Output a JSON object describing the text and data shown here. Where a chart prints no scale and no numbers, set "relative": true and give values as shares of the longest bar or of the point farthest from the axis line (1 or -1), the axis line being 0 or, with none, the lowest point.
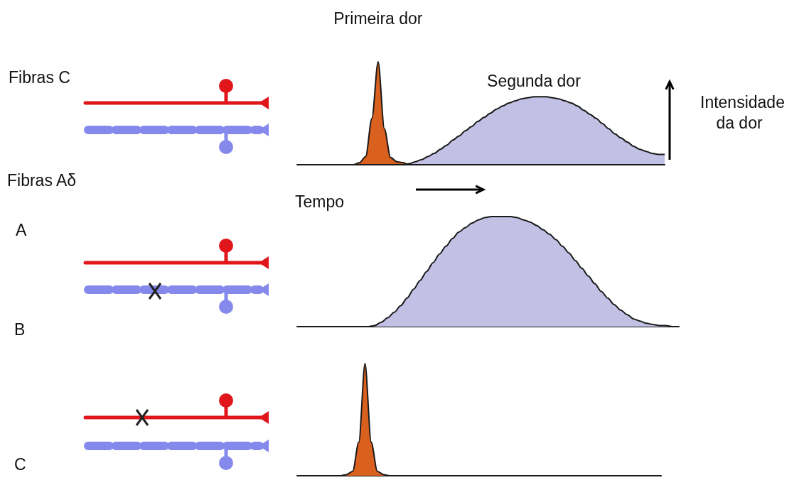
{
  "chart_data": [
    {
      "type": "area",
      "relative": true,
      "xlabel": "Tempo",
      "ylabel": "Intensidade da dor",
      "legend": false,
      "annotations": [
        "Fibras C",
        "Fibras Aδ",
        "A"
      ],
      "categories": [
        null,
        null,
        null,
        null,
        null,
        null,
        null,
        null,
        null,
        null,
        null,
        null,
        null,
        null,
        null,
        null,
        null,
        null,
        null,
        null,
        null,
        null,
        null,
        null,
        null,
        null,
        null,
        null,
        null,
        null,
        null,
        null,
        null,
        null,
        null,
        null,
        null,
        null,
        null,
        null,
        null,
        null,
        null,
        null,
        null,
        null,
        null,
        null,
        null,
        null,
        null,
        null,
        null,
        null,
        null,
        null,
        null,
        null,
        null,
        null
      ],
      "series": [
        {
          "name": "Primeira dor",
          "color": "#d9601e",
          "values": [
            0,
            0,
            0,
            0,
            0,
            0,
            0,
            0,
            0,
            0,
            0.02,
            0.08,
            0.45,
            1,
            0.35,
            0.07,
            0.03,
            0.02,
            0,
            0,
            0,
            0,
            0,
            0,
            0,
            0,
            0,
            0,
            0,
            0,
            0,
            0,
            0,
            0,
            0,
            0,
            0,
            0,
            0,
            0,
            0,
            0,
            0,
            0,
            0,
            0,
            0,
            0,
            0,
            0,
            0,
            0,
            0,
            0,
            0,
            0,
            0,
            0,
            0,
            0
          ]
        },
        {
          "name": "Segunda dor",
          "color": "#c2c0e4",
          "values": [
            0,
            0,
            0,
            0,
            0,
            0,
            0,
            0,
            0,
            0,
            0,
            0,
            0,
            0,
            0,
            0,
            0,
            0,
            0.01,
            0.03,
            0.05,
            0.08,
            0.11,
            0.15,
            0.19,
            0.24,
            0.28,
            0.33,
            0.37,
            0.42,
            0.46,
            0.5,
            0.54,
            0.57,
            0.6,
            0.62,
            0.64,
            0.65,
            0.66,
            0.66,
            0.66,
            0.65,
            0.64,
            0.62,
            0.6,
            0.57,
            0.53,
            0.49,
            0.45,
            0.4,
            0.35,
            0.3,
            0.26,
            0.22,
            0.18,
            0.15,
            0.13,
            0.11,
            0.1,
            0.1
          ]
        }
      ]
    },
    {
      "type": "area",
      "relative": true,
      "legend": false,
      "annotations": [
        "B"
      ],
      "categories": [
        null,
        null,
        null,
        null,
        null,
        null,
        null,
        null,
        null,
        null,
        null,
        null,
        null,
        null,
        null,
        null,
        null,
        null,
        null,
        null,
        null,
        null,
        null,
        null,
        null,
        null,
        null,
        null,
        null,
        null,
        null,
        null,
        null,
        null,
        null,
        null,
        null,
        null,
        null,
        null,
        null,
        null,
        null,
        null,
        null,
        null,
        null,
        null,
        null,
        null,
        null,
        null,
        null,
        null,
        null,
        null,
        null,
        null,
        null,
        null
      ],
      "series": [
        {
          "color": "#c2c0e4",
          "values": [
            0,
            0,
            0,
            0,
            0,
            0,
            0,
            0,
            0,
            0,
            0,
            0,
            0.01,
            0.04,
            0.08,
            0.13,
            0.19,
            0.26,
            0.34,
            0.42,
            0.5,
            0.58,
            0.66,
            0.73,
            0.8,
            0.86,
            0.9,
            0.94,
            0.97,
            0.99,
            1,
            1,
            1,
            1,
            0.99,
            0.97,
            0.95,
            0.92,
            0.88,
            0.84,
            0.79,
            0.73,
            0.67,
            0.6,
            0.53,
            0.46,
            0.39,
            0.32,
            0.26,
            0.2,
            0.15,
            0.11,
            0.07,
            0.05,
            0.03,
            0.02,
            0.01,
            0.01,
            0,
            0
          ]
        }
      ]
    },
    {
      "type": "area",
      "relative": true,
      "legend": false,
      "annotations": [
        "C"
      ],
      "categories": [
        null,
        null,
        null,
        null,
        null,
        null,
        null,
        null,
        null,
        null,
        null,
        null,
        null,
        null,
        null,
        null,
        null,
        null,
        null,
        null,
        null,
        null,
        null,
        null,
        null,
        null,
        null,
        null,
        null,
        null,
        null,
        null,
        null,
        null,
        null,
        null,
        null,
        null,
        null,
        null,
        null,
        null,
        null,
        null,
        null,
        null,
        null,
        null,
        null,
        null,
        null,
        null,
        null,
        null,
        null,
        null,
        null,
        null,
        null,
        null
      ],
      "series": [
        {
          "color": "#d9601e",
          "values": [
            0,
            0,
            0,
            0,
            0,
            0,
            0,
            0,
            0.01,
            0.04,
            0.3,
            1,
            0.3,
            0.04,
            0.01,
            0,
            0,
            0,
            0,
            0,
            0,
            0,
            0,
            0,
            0,
            0,
            0,
            0,
            0,
            0,
            0,
            0,
            0,
            0,
            0,
            0,
            0,
            0,
            0,
            0,
            0,
            0,
            0,
            0,
            0,
            0,
            0,
            0,
            0,
            0,
            0,
            0,
            0,
            0,
            0,
            0,
            0,
            0,
            0,
            0
          ]
        }
      ]
    }
  ]
}
